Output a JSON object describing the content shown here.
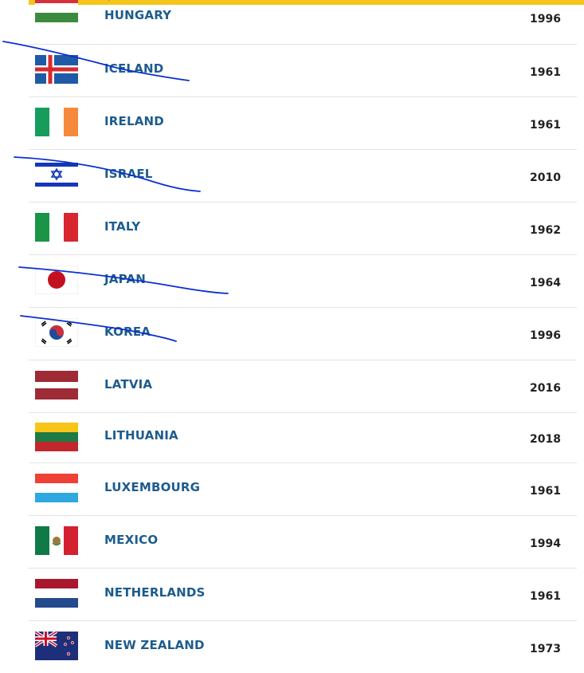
{
  "countries": [
    {
      "name": "HUNGARY",
      "year": "1996",
      "flag": "hungary-flag-icon"
    },
    {
      "name": "ICELAND",
      "year": "1961",
      "flag": "iceland-flag-icon"
    },
    {
      "name": "IRELAND",
      "year": "1961",
      "flag": "ireland-flag-icon"
    },
    {
      "name": "ISRAEL",
      "year": "2010",
      "flag": "israel-flag-icon"
    },
    {
      "name": "ITALY",
      "year": "1962",
      "flag": "italy-flag-icon"
    },
    {
      "name": "JAPAN",
      "year": "1964",
      "flag": "japan-flag-icon"
    },
    {
      "name": "KOREA",
      "year": "1996",
      "flag": "korea-flag-icon"
    },
    {
      "name": "LATVIA",
      "year": "2016",
      "flag": "latvia-flag-icon"
    },
    {
      "name": "LITHUANIA",
      "year": "2018",
      "flag": "lithuania-flag-icon"
    },
    {
      "name": "LUXEMBOURG",
      "year": "1961",
      "flag": "luxembourg-flag-icon"
    },
    {
      "name": "MEXICO",
      "year": "1994",
      "flag": "mexico-flag-icon"
    },
    {
      "name": "NETHERLANDS",
      "year": "1961",
      "flag": "netherlands-flag-icon"
    },
    {
      "name": "NEW ZEALAND",
      "year": "1973",
      "flag": "new-zealand-flag-icon"
    }
  ],
  "colors": {
    "accent_bar": "#f6c51b",
    "link": "#1d5c8e",
    "ink_marks": "#0a2fd1"
  }
}
